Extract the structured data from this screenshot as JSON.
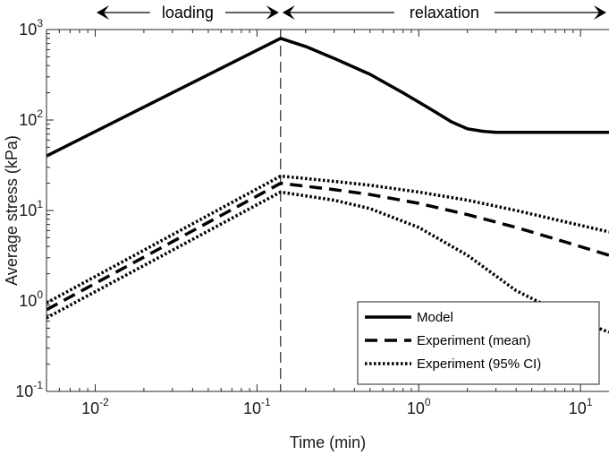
{
  "chart_data": {
    "type": "line",
    "xscale": "log",
    "yscale": "log",
    "xlim": [
      0.005,
      15
    ],
    "ylim": [
      0.1,
      1000
    ],
    "xlabel": "Time (min)",
    "ylabel": "Average stress (kPa)",
    "x_ticks": [
      {
        "value": 0.01,
        "base": "10",
        "exp": "-2"
      },
      {
        "value": 0.1,
        "base": "10",
        "exp": "-1"
      },
      {
        "value": 1,
        "base": "10",
        "exp": "0"
      },
      {
        "value": 10,
        "base": "10",
        "exp": "1"
      }
    ],
    "y_ticks": [
      {
        "value": 0.1,
        "base": "10",
        "exp": "-1"
      },
      {
        "value": 1,
        "base": "10",
        "exp": "0"
      },
      {
        "value": 10,
        "base": "10",
        "exp": "1"
      },
      {
        "value": 100,
        "base": "10",
        "exp": "2"
      },
      {
        "value": 1000,
        "base": "10",
        "exp": "3"
      }
    ],
    "grid": false,
    "legend_position": "bottom-right",
    "phase_boundary": 0.14,
    "phases": [
      {
        "label": "loading",
        "from": 0.005,
        "to": 0.14
      },
      {
        "label": "relaxation",
        "from": 0.14,
        "to": 15
      }
    ],
    "series": [
      {
        "name": "Model",
        "style": "solid",
        "x": [
          0.005,
          0.14,
          0.2,
          0.3,
          0.5,
          0.8,
          1.2,
          1.6,
          2.0,
          2.5,
          3.0,
          4.0,
          6.0,
          10.0,
          15.0
        ],
        "y": [
          40,
          800,
          650,
          480,
          320,
          200,
          130,
          95,
          80,
          75,
          73,
          73,
          73,
          73,
          73
        ]
      },
      {
        "name": "Experiment (mean)",
        "style": "dashed",
        "x": [
          0.005,
          0.14,
          0.3,
          0.5,
          1.0,
          2.0,
          4.0,
          8.0,
          15.0
        ],
        "y": [
          0.8,
          20,
          17,
          15,
          12,
          9,
          6.5,
          4.5,
          3.2
        ]
      },
      {
        "name": "Experiment (95% CI)",
        "style": "dotted",
        "x": [
          0.005,
          0.14,
          0.3,
          0.5,
          1.0,
          2.0,
          4.0,
          8.0,
          15.0
        ],
        "y": [
          0.95,
          24,
          21,
          19,
          16,
          13,
          10,
          7.5,
          5.8
        ]
      },
      {
        "name": "Experiment (95% CI)",
        "style": "dotted",
        "x": [
          0.005,
          0.14,
          0.3,
          0.5,
          1.0,
          2.0,
          4.0,
          8.0,
          15.0
        ],
        "y": [
          0.65,
          16,
          13,
          10.5,
          6.5,
          3.2,
          1.3,
          0.7,
          0.45
        ]
      }
    ],
    "legend": [
      "Model",
      "Experiment (mean)",
      "Experiment (95% CI)"
    ]
  }
}
